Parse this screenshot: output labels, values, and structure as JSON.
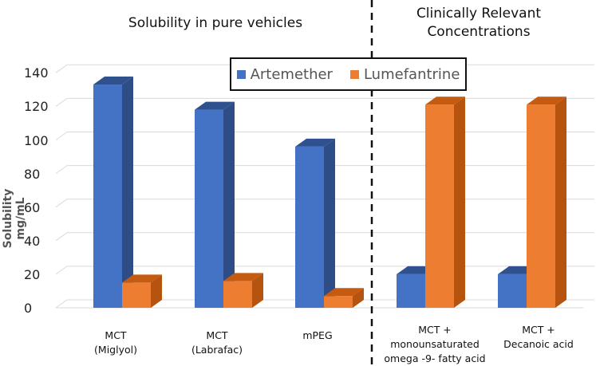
{
  "chart_data": {
    "type": "bar",
    "title_left": "Solubility in pure vehicles",
    "title_right_lines": [
      "Clinically Relevant",
      "Concentrations"
    ],
    "ylabel": "Solubility  mg/mL",
    "ylim": [
      0,
      140
    ],
    "yticks": [
      "0",
      "20",
      "40",
      "60",
      "80",
      "100",
      "120",
      "140"
    ],
    "grid": true,
    "legend_position": "top-center",
    "categories": [
      {
        "lines": [
          "MCT",
          "(Miglyol)"
        ]
      },
      {
        "lines": [
          "MCT",
          "(Labrafac)"
        ]
      },
      {
        "lines": [
          "mPEG"
        ]
      },
      {
        "lines": [
          "MCT +",
          "monounsaturated",
          "omega -9- fatty acid"
        ]
      },
      {
        "lines": [
          "MCT +",
          "Decanoic acid"
        ]
      }
    ],
    "series": [
      {
        "name": "Artemether",
        "color": "#4472C4",
        "top_color": "#2F528F",
        "side_color": "#2E4D87",
        "values": [
          133,
          118,
          96,
          20,
          20
        ]
      },
      {
        "name": "Lumefantrine",
        "color": "#ED7D31",
        "top_color": "#C55A11",
        "side_color": "#B6530F",
        "values": [
          15,
          16,
          7,
          121,
          121
        ]
      }
    ],
    "divider": "dashed vertical line between mPEG and clinically relevant groups"
  }
}
